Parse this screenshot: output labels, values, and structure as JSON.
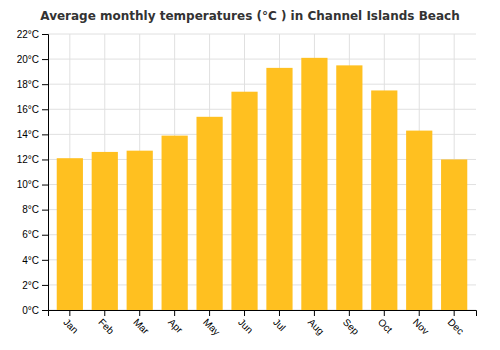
{
  "chart_data": {
    "type": "bar",
    "title": "Average monthly temperatures (°C ) in Channel Islands Beach",
    "categories": [
      "Jan",
      "Feb",
      "Mar",
      "Apr",
      "May",
      "Jun",
      "Jul",
      "Aug",
      "Sep",
      "Oct",
      "Nov",
      "Dec"
    ],
    "values": [
      12.1,
      12.6,
      12.7,
      13.9,
      15.4,
      17.4,
      19.3,
      20.1,
      19.5,
      17.5,
      14.3,
      12.0
    ],
    "color": "#FFC020",
    "ylim": [
      0,
      22
    ],
    "yticks": [
      {
        "value": 0,
        "label": "0°C"
      },
      {
        "value": 2,
        "label": "2°C"
      },
      {
        "value": 4,
        "label": "4°C"
      },
      {
        "value": 6,
        "label": "6°C"
      },
      {
        "value": 8,
        "label": "8°C"
      },
      {
        "value": 10,
        "label": "10°C"
      },
      {
        "value": 12,
        "label": "12°C"
      },
      {
        "value": 14,
        "label": "14°C"
      },
      {
        "value": 16,
        "label": "16°C"
      },
      {
        "value": 18,
        "label": "18°C"
      },
      {
        "value": 20,
        "label": "20°C"
      },
      {
        "value": 22,
        "label": "22°C"
      }
    ],
    "grid": true
  }
}
